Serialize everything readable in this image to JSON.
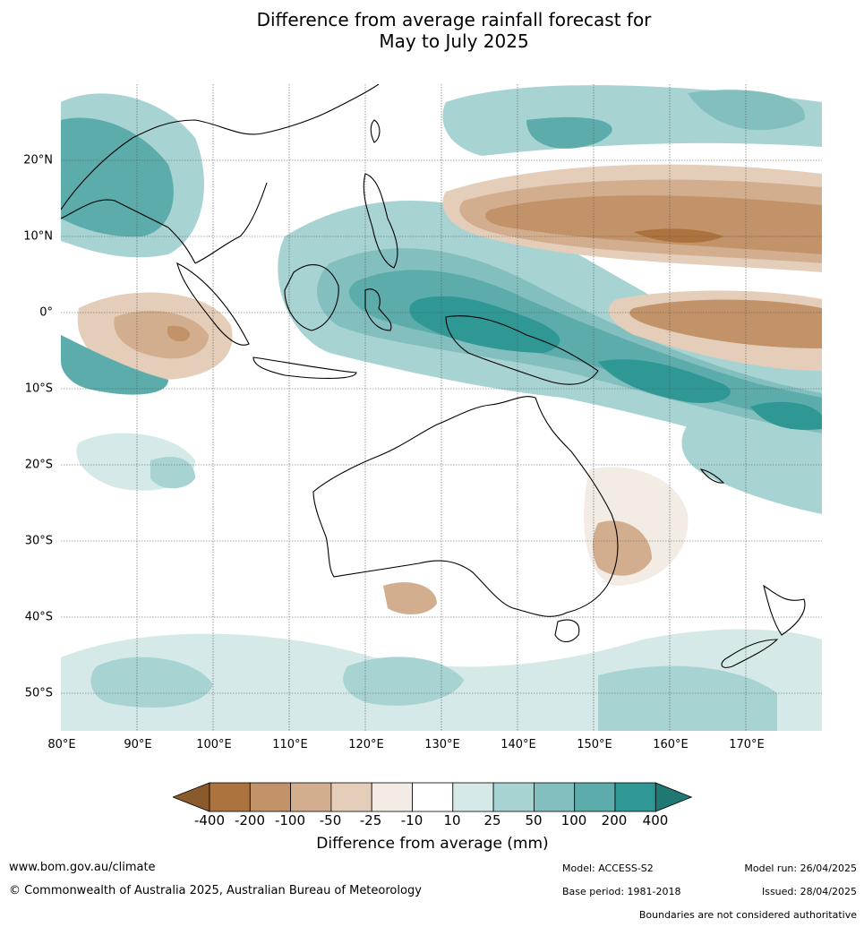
{
  "title": {
    "line1": "Difference from average rainfall forecast for",
    "line2": "May to July 2025"
  },
  "map": {
    "lat_labels": [
      "20°N",
      "10°N",
      "0°",
      "10°S",
      "20°S",
      "30°S",
      "40°S",
      "50°S"
    ],
    "lon_labels": [
      "80°E",
      "90°E",
      "100°E",
      "110°E",
      "120°E",
      "130°E",
      "140°E",
      "150°E",
      "160°E",
      "170°E"
    ],
    "extent": {
      "lon_min": 80,
      "lon_max": 180,
      "lat_min": -55,
      "lat_max": 30
    }
  },
  "legend": {
    "label": "Difference from average (mm)",
    "ticks": [
      "-400",
      "-200",
      "-100",
      "-50",
      "-25",
      "-10",
      "10",
      "25",
      "50",
      "100",
      "200",
      "400"
    ],
    "colors": [
      "#8a5a2c",
      "#ad733e",
      "#c29268",
      "#d3ae8e",
      "#e4cdb9",
      "#f2ece5",
      "#ffffff",
      "#d5e9e8",
      "#a8d3d3",
      "#82bfbe",
      "#5bacab",
      "#2f9894",
      "#1f7873"
    ]
  },
  "footer": {
    "website": "www.bom.gov.au/climate",
    "copyright": "© Commonwealth of Australia 2025, Australian Bureau of Meteorology",
    "model": "Model: ACCESS-S2",
    "base_period": "Base period: 1981-2018",
    "model_run": "Model run: 26/04/2025",
    "issued": "Issued: 28/04/2025",
    "disclaimer": "Boundaries are not considered authoritative"
  }
}
